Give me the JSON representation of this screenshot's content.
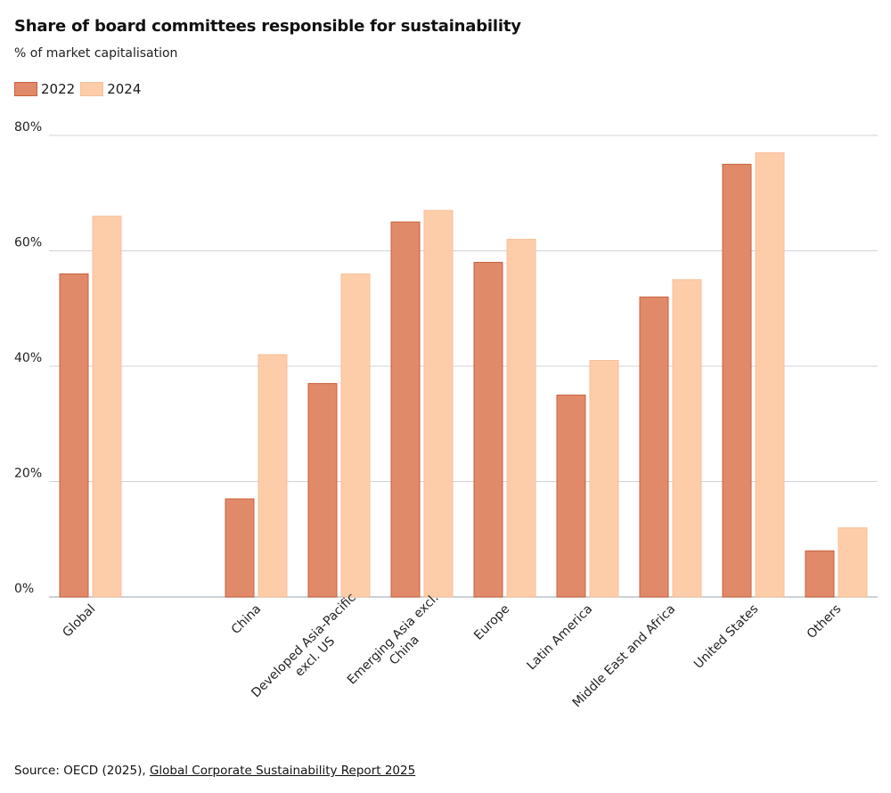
{
  "chart_data": {
    "type": "bar",
    "title": "Share of board committees responsible for sustainability",
    "subtitle": "% of market capitalisation",
    "xlabel": "",
    "ylabel": "",
    "ylim": [
      0,
      80
    ],
    "yticks": [
      0,
      20,
      40,
      60,
      80
    ],
    "ytick_labels": [
      "0%",
      "20%",
      "40%",
      "60%",
      "80%"
    ],
    "grid": true,
    "legend_position": "top-left",
    "categories": [
      [
        "Global"
      ],
      [
        ""
      ],
      [
        "China"
      ],
      [
        "Developed Asia-Pacific",
        "excl. US"
      ],
      [
        "Emerging Asia excl.",
        "China"
      ],
      [
        "Europe"
      ],
      [
        "Latin America"
      ],
      [
        "Middle East and Africa"
      ],
      [
        "United States"
      ],
      [
        "Others"
      ]
    ],
    "series": [
      {
        "name": "2022",
        "color": "#e08a69",
        "stroke": "#c8603d",
        "values": [
          56,
          null,
          17,
          37,
          65,
          58,
          35,
          52,
          75,
          8
        ]
      },
      {
        "name": "2024",
        "color": "#fdcdaa",
        "stroke": "#f7bf98",
        "values": [
          66,
          null,
          42,
          56,
          67,
          62,
          41,
          55,
          77,
          12
        ]
      }
    ],
    "source_prefix": "Source: OECD (2025), ",
    "source_link": "Global Corporate Sustainability Report 2025"
  }
}
